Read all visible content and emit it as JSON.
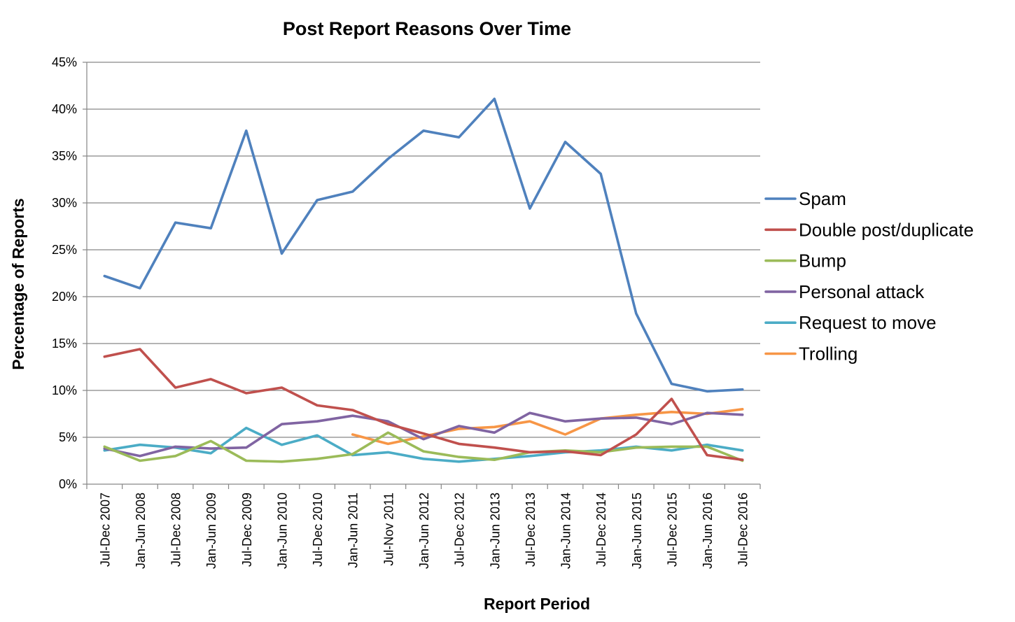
{
  "chart_data": {
    "type": "line",
    "title": "Post Report Reasons Over Time",
    "xlabel": "Report Period",
    "ylabel": "Percentage of Reports",
    "ylim": [
      0,
      45
    ],
    "y_unit": "%",
    "y_ticks": [
      "0%",
      "5%",
      "10%",
      "15%",
      "20%",
      "25%",
      "30%",
      "35%",
      "40%",
      "45%"
    ],
    "grid": true,
    "legend_position": "right",
    "categories": [
      "Jul-Dec 2007",
      "Jan-Jun 2008",
      "Jul-Dec 2008",
      "Jan-Jun 2009",
      "Jul-Dec 2009",
      "Jan-Jun 2010",
      "Jul-Dec 2010",
      "Jan-Jun 2011",
      "Jul-Nov 2011",
      "Jan-Jun 2012",
      "Jul-Dec 2012",
      "Jan-Jun 2013",
      "Jul-Dec 2013",
      "Jan-Jun 2014",
      "Jul-Dec 2014",
      "Jan-Jun 2015",
      "Jul-Dec 2015",
      "Jan-Jun 2016",
      "Jul-Dec 2016"
    ],
    "series": [
      {
        "name": "Spam",
        "color": "#4F81BD",
        "values": [
          22.2,
          20.9,
          27.9,
          27.3,
          37.7,
          24.6,
          30.3,
          31.2,
          34.7,
          37.7,
          37.0,
          41.1,
          29.4,
          36.5,
          33.1,
          18.2,
          10.7,
          9.9,
          10.1
        ]
      },
      {
        "name": "Double post/duplicate",
        "color": "#C0504D",
        "values": [
          13.6,
          14.4,
          10.3,
          11.2,
          9.7,
          10.3,
          8.4,
          7.9,
          6.4,
          5.4,
          4.3,
          3.9,
          3.4,
          3.5,
          3.1,
          5.3,
          9.1,
          3.1,
          2.6
        ]
      },
      {
        "name": "Bump",
        "color": "#9BBB59",
        "values": [
          4.0,
          2.5,
          3.0,
          4.6,
          2.5,
          2.4,
          2.7,
          3.2,
          5.5,
          3.5,
          2.9,
          2.6,
          3.4,
          3.6,
          3.4,
          3.9,
          4.0,
          4.0,
          2.5
        ]
      },
      {
        "name": "Personal attack",
        "color": "#8064A2",
        "values": [
          3.8,
          3.0,
          4.0,
          3.8,
          3.9,
          6.4,
          6.7,
          7.3,
          6.7,
          4.8,
          6.2,
          5.5,
          7.6,
          6.7,
          7.0,
          7.1,
          6.4,
          7.6,
          7.4
        ]
      },
      {
        "name": "Request to move",
        "color": "#4BACC6",
        "values": [
          3.6,
          4.2,
          3.9,
          3.3,
          6.0,
          4.2,
          5.2,
          3.1,
          3.4,
          2.7,
          2.4,
          2.7,
          3.0,
          3.4,
          3.6,
          4.0,
          3.6,
          4.2,
          3.6
        ]
      },
      {
        "name": "Trolling",
        "color": "#F79646",
        "values": [
          null,
          null,
          null,
          null,
          null,
          null,
          null,
          5.3,
          4.3,
          5.1,
          5.9,
          6.1,
          6.7,
          5.3,
          7.0,
          7.4,
          7.7,
          7.5,
          8.0
        ]
      }
    ]
  }
}
